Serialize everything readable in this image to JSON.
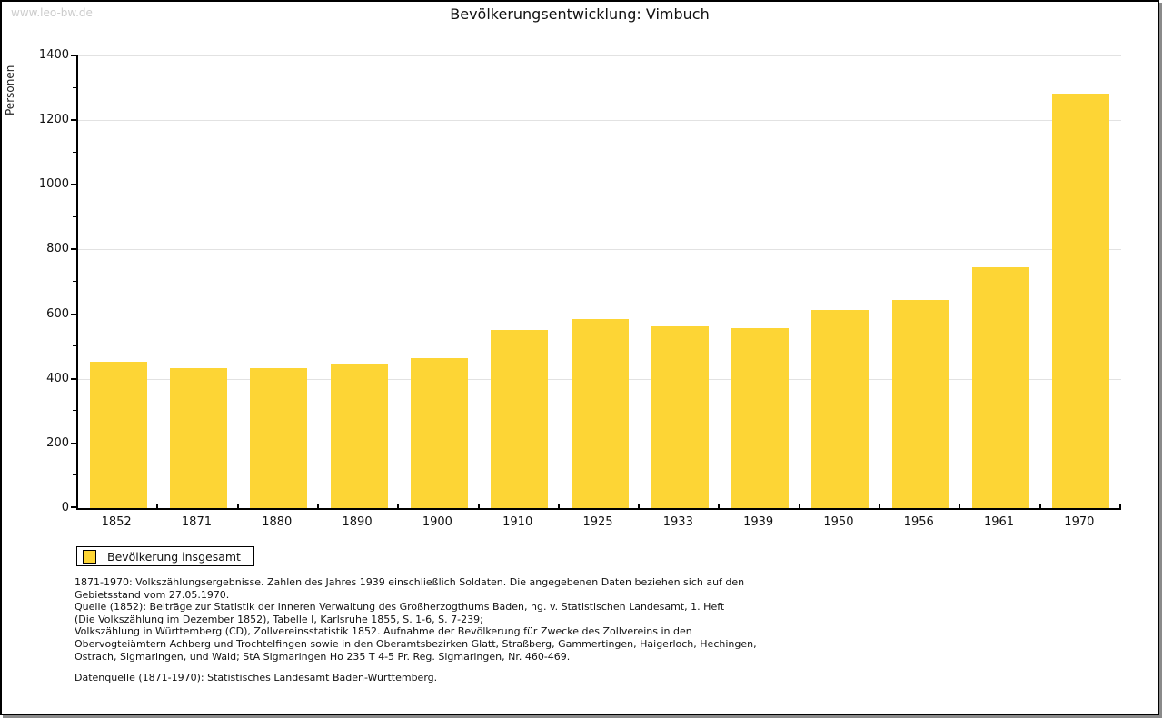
{
  "page": {
    "watermark": "www.leo-bw.de",
    "title": "Bevölkerungsentwicklung: Vimbuch"
  },
  "chart_data": {
    "type": "bar",
    "title": "Bevölkerungsentwicklung: Vimbuch",
    "xlabel": "",
    "ylabel": "Personen",
    "ylim": [
      0,
      1400
    ],
    "ytick_step": 200,
    "yticks": [
      0,
      200,
      400,
      600,
      800,
      1000,
      1200,
      1400
    ],
    "minor_tick_step": 100,
    "grid": true,
    "bar_color": "#fdd535",
    "categories": [
      "1852",
      "1871",
      "1880",
      "1890",
      "1900",
      "1910",
      "1925",
      "1933",
      "1939",
      "1950",
      "1956",
      "1961",
      "1970"
    ],
    "values": [
      453,
      434,
      433,
      446,
      463,
      551,
      585,
      562,
      556,
      614,
      645,
      745,
      1281
    ],
    "legend": [
      {
        "label": "Bevölkerung insgesamt",
        "color": "#fdd535"
      }
    ],
    "legend_position": "bottom-left"
  },
  "legend": {
    "label": "Bevölkerung insgesamt"
  },
  "footnotes": {
    "block1": "1871-1970: Volkszählungsergebnisse. Zahlen des Jahres 1939 einschließlich Soldaten. Die angegebenen Daten beziehen sich auf den\nGebietsstand vom 27.05.1970.\nQuelle (1852): Beiträge zur Statistik der Inneren Verwaltung des Großherzogthums Baden, hg. v. Statistischen Landesamt, 1. Heft\n(Die Volkszählung im Dezember 1852), Tabelle I, Karlsruhe 1855, S. 1-6, S. 7-239;\nVolkszählung in Württemberg (CD), Zollvereinsstatistik 1852. Aufnahme der Bevölkerung für Zwecke des Zollvereins in den\nObervogteiämtern Achberg und Trochtelfingen sowie in den Oberamtsbezirken Glatt, Straßberg, Gammertingen, Haigerloch, Hechingen,\nOstrach, Sigmaringen, und Wald; StA Sigmaringen Ho 235 T 4-5 Pr. Reg. Sigmaringen, Nr. 460-469.",
    "block2": "Datenquelle (1871-1970): Statistisches Landesamt Baden-Württemberg."
  }
}
